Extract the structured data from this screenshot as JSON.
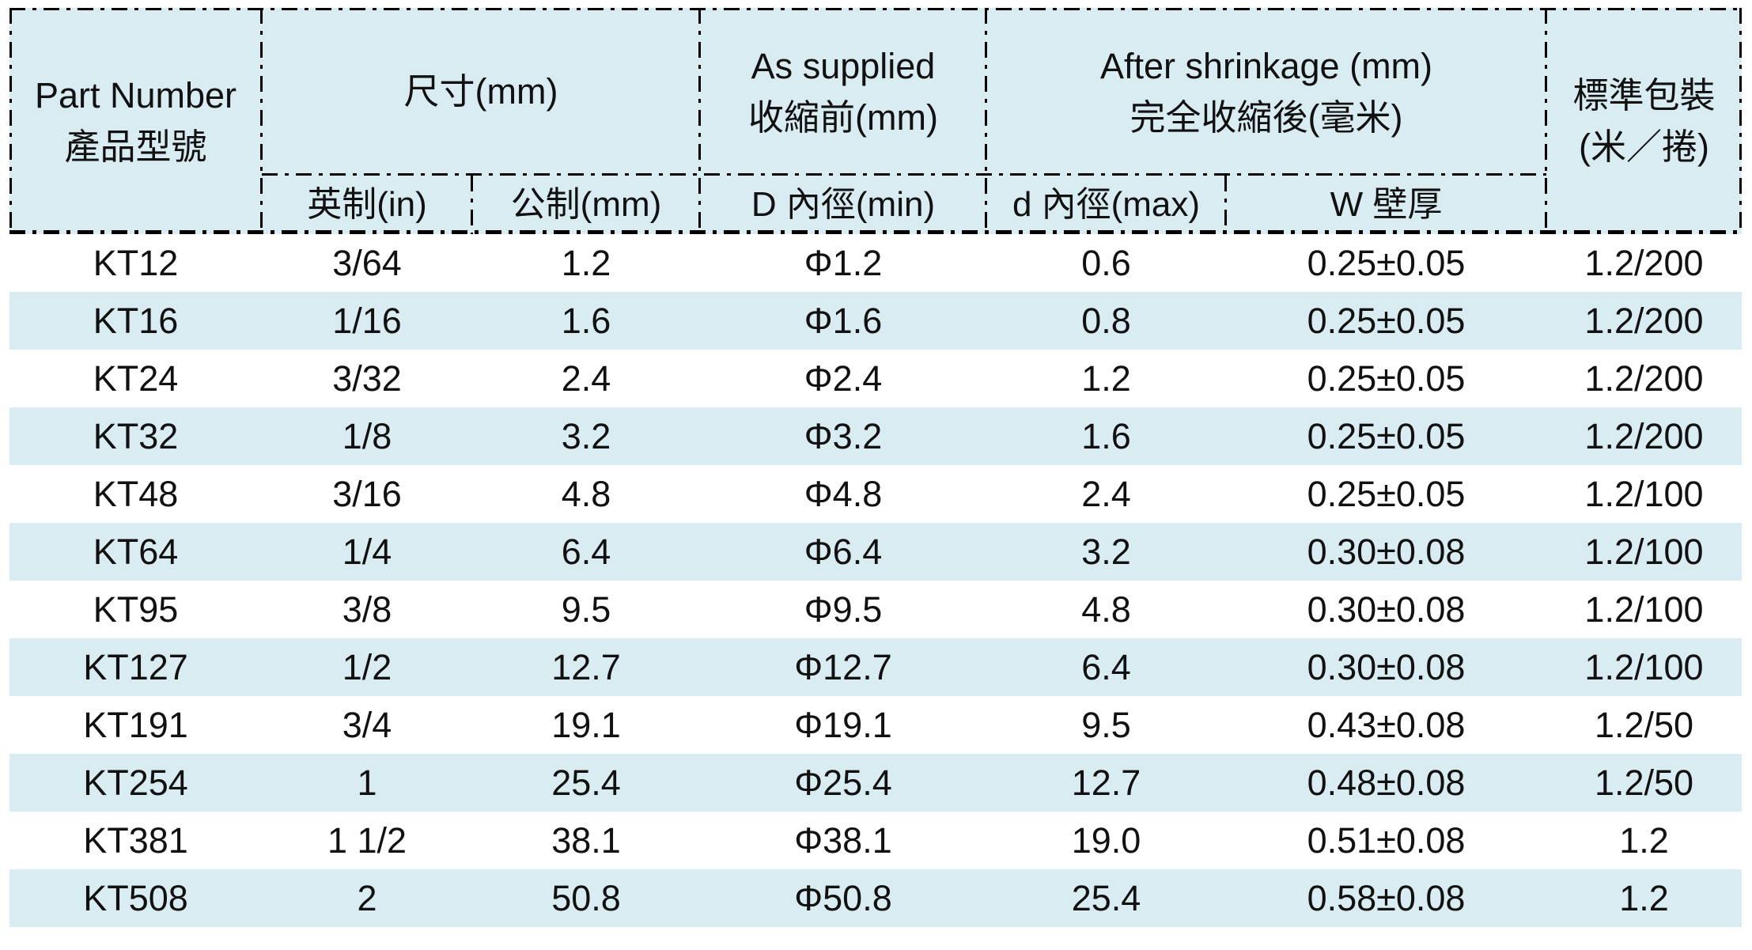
{
  "colors": {
    "header_bg": "#d9ecf2",
    "stripe_bg": "#d9ecf2",
    "row_bg": "#ffffff",
    "border": "#000000",
    "text": "#111111"
  },
  "table": {
    "header": {
      "part_number_en": "Part Number",
      "part_number_zh": "產品型號",
      "size_group": "尺寸(mm)",
      "as_supplied_en": "As supplied",
      "as_supplied_zh": "收縮前(mm)",
      "after_shrinkage_en": "After shrinkage (mm)",
      "after_shrinkage_zh": "完全收縮後(毫米)",
      "packaging_line1": "標準包裝",
      "packaging_line2": "(米／捲)",
      "sub_inch": "英制(in)",
      "sub_metric": "公制(mm)",
      "sub_d_min": "D 內徑(min)",
      "sub_d_max": "d 內徑(max)",
      "sub_wall": "W 壁厚"
    },
    "rows": [
      [
        "KT12",
        "3/64",
        "1.2",
        "Φ1.2",
        "0.6",
        "0.25±0.05",
        "1.2/200"
      ],
      [
        "KT16",
        "1/16",
        "1.6",
        "Φ1.6",
        "0.8",
        "0.25±0.05",
        "1.2/200"
      ],
      [
        "KT24",
        "3/32",
        "2.4",
        "Φ2.4",
        "1.2",
        "0.25±0.05",
        "1.2/200"
      ],
      [
        "KT32",
        "1/8",
        "3.2",
        "Φ3.2",
        "1.6",
        "0.25±0.05",
        "1.2/200"
      ],
      [
        "KT48",
        "3/16",
        "4.8",
        "Φ4.8",
        "2.4",
        "0.25±0.05",
        "1.2/100"
      ],
      [
        "KT64",
        "1/4",
        "6.4",
        "Φ6.4",
        "3.2",
        "0.30±0.08",
        "1.2/100"
      ],
      [
        "KT95",
        "3/8",
        "9.5",
        "Φ9.5",
        "4.8",
        "0.30±0.08",
        "1.2/100"
      ],
      [
        "KT127",
        "1/2",
        "12.7",
        "Φ12.7",
        "6.4",
        "0.30±0.08",
        "1.2/100"
      ],
      [
        "KT191",
        "3/4",
        "19.1",
        "Φ19.1",
        "9.5",
        "0.43±0.08",
        "1.2/50"
      ],
      [
        "KT254",
        "1",
        "25.4",
        "Φ25.4",
        "12.7",
        "0.48±0.08",
        "1.2/50"
      ],
      [
        "KT381",
        "1 1/2",
        "38.1",
        "Φ38.1",
        "19.0",
        "0.51±0.08",
        "1.2"
      ],
      [
        "KT508",
        "2",
        "50.8",
        "Φ50.8",
        "25.4",
        "0.58±0.08",
        "1.2"
      ]
    ]
  }
}
